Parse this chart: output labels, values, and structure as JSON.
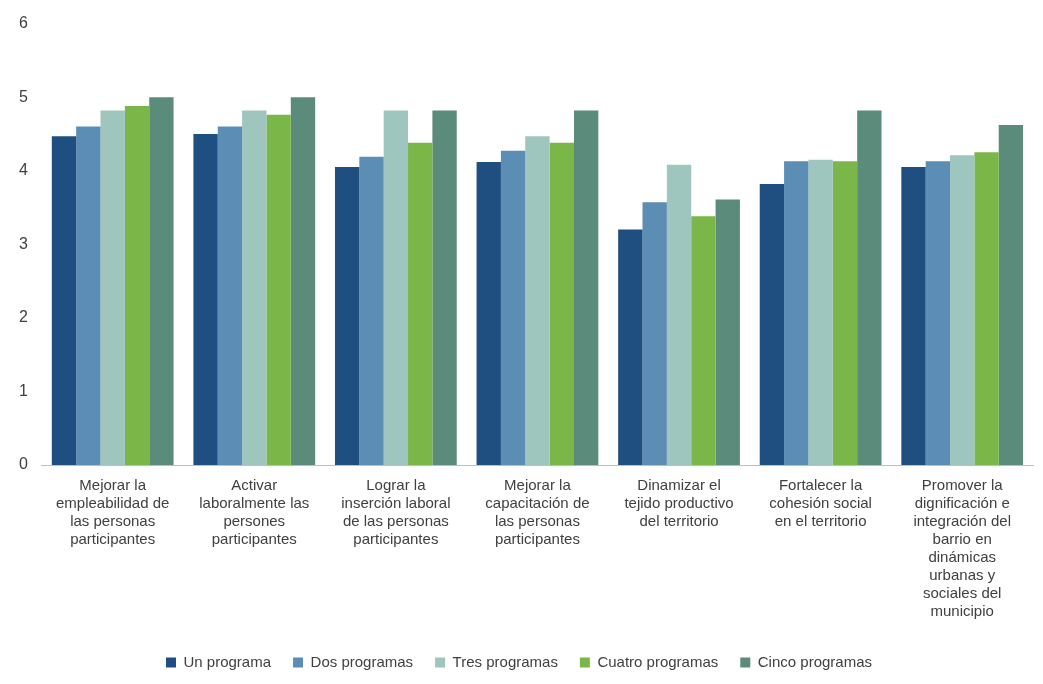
{
  "chart_data": {
    "type": "bar",
    "categories": [
      "Mejorar la empleabilidad de las personas participantes",
      "Activar laboralmente las persones participantes",
      "Lograr la inserción laboral de las personas participantes",
      "Mejorar la capacitación de las personas participantes",
      "Dinamizar el tejido productivo del territorio",
      "Fortalecer la cohesión social en el territorio",
      "Promover la dignificación e integración del barrio en dinámicas urbanas y sociales del municipio"
    ],
    "series": [
      {
        "name": "Un programa",
        "color": "#1f4e80",
        "values": [
          4.47,
          4.5,
          4.05,
          4.12,
          3.2,
          3.82,
          4.05
        ]
      },
      {
        "name": "Dos programas",
        "color": "#5b8db5",
        "values": [
          4.6,
          4.6,
          4.19,
          4.27,
          3.57,
          4.13,
          4.13
        ]
      },
      {
        "name": "Tres programas",
        "color": "#9fc5bf",
        "values": [
          4.82,
          4.82,
          4.82,
          4.47,
          4.08,
          4.15,
          4.21
        ]
      },
      {
        "name": "Cuatro programas",
        "color": "#7ab648",
        "values": [
          4.88,
          4.76,
          4.38,
          4.38,
          3.38,
          4.13,
          4.25
        ]
      },
      {
        "name": "Cinco programas",
        "color": "#5a8b7b",
        "values": [
          5.0,
          5.0,
          4.82,
          4.82,
          3.61,
          4.82,
          4.62
        ]
      }
    ],
    "ylim": [
      0,
      6
    ],
    "yticks": [
      0,
      1,
      2,
      3,
      4,
      5,
      6
    ],
    "grid": false,
    "legend": "bottom"
  }
}
